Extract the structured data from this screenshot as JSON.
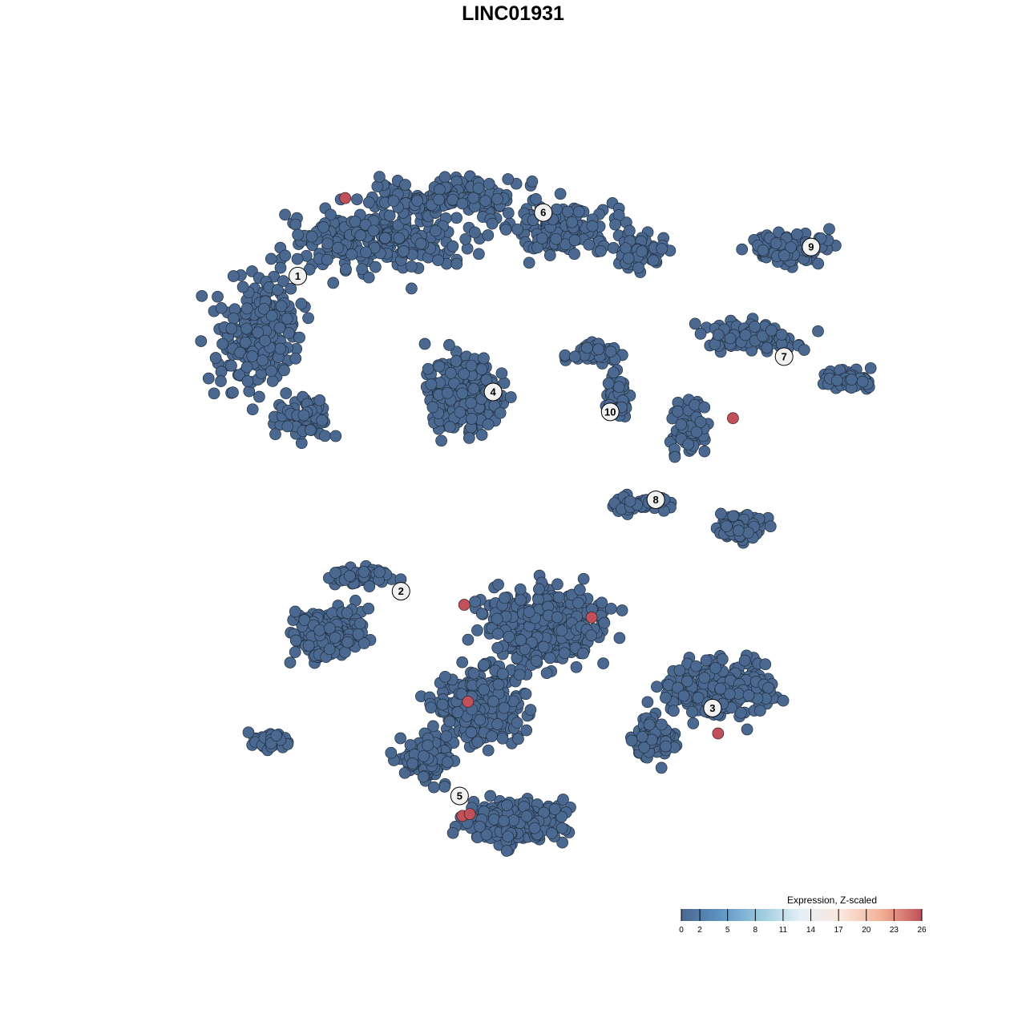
{
  "chart_data": {
    "type": "scatter",
    "title": "LINC01931",
    "xlabel": "",
    "ylabel": "",
    "grid": false,
    "axes_visible": false,
    "point_color_low": "#4a6890",
    "point_color_high": "#c0505a",
    "cluster_labels": [
      {
        "label": "1",
        "x": -25.3,
        "y": 25.9
      },
      {
        "label": "2",
        "x": -14.2,
        "y": -8.9
      },
      {
        "label": "3",
        "x": 19.3,
        "y": -21.8
      },
      {
        "label": "4",
        "x": -4.3,
        "y": 13.1
      },
      {
        "label": "5",
        "x": -7.9,
        "y": -31.5
      },
      {
        "label": "6",
        "x": 1.1,
        "y": 32.9
      },
      {
        "label": "7",
        "x": 27.0,
        "y": 17.0
      },
      {
        "label": "8",
        "x": 13.2,
        "y": 1.2
      },
      {
        "label": "9",
        "x": 29.9,
        "y": 29.1
      },
      {
        "label": "10",
        "x": 8.3,
        "y": 10.9
      }
    ],
    "baseline_expression": 0,
    "high_expression_points": [
      {
        "x": -20.2,
        "y": 34.5,
        "value": 26
      },
      {
        "x": 21.5,
        "y": 10.2,
        "value": 26
      },
      {
        "x": -7.4,
        "y": -10.4,
        "value": 26
      },
      {
        "x": 6.3,
        "y": -11.8,
        "value": 26
      },
      {
        "x": -7.0,
        "y": -21.1,
        "value": 26
      },
      {
        "x": 19.9,
        "y": -24.6,
        "value": 26
      },
      {
        "x": -7.6,
        "y": -33.7,
        "value": 26
      },
      {
        "x": -6.8,
        "y": -33.5,
        "value": 26
      }
    ],
    "legend": {
      "title": "Expression, Z-scaled",
      "position": "bottom-right",
      "ticks": [
        "0",
        "2",
        "5",
        "8",
        "11",
        "14",
        "17",
        "20",
        "23",
        "26"
      ],
      "range": [
        0,
        26
      ],
      "colors": [
        "#4a6890",
        "#5f95c4",
        "#9ccbe0",
        "#e6f0f5",
        "#fbe6dc",
        "#f2b095",
        "#c0505a"
      ]
    }
  }
}
